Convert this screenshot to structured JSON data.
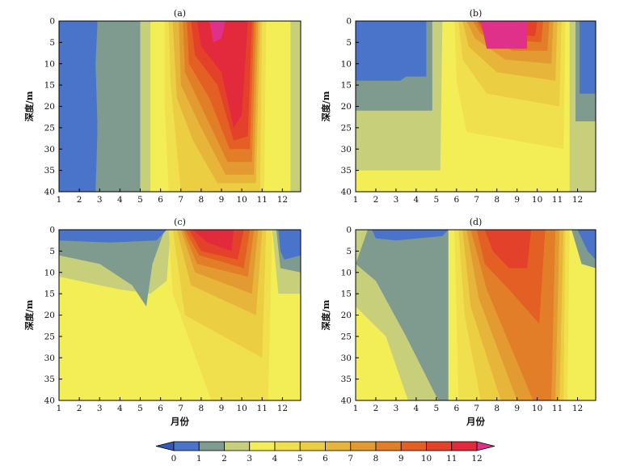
{
  "colors": {
    "c0_1": "#4a74c9",
    "c1_2": "#7f9a8f",
    "c2_3": "#c8cf7a",
    "c3_4": "#f3ee56",
    "c4_5": "#f0e04e",
    "c5_6": "#ecce43",
    "c6_7": "#e6b53a",
    "c7_8": "#e39a30",
    "c8_9": "#e37e28",
    "c9_10": "#e45f23",
    "c10_11": "#e4412a",
    "c11_12": "#e3293c",
    "over12": "#e0318a"
  },
  "chart_data": [
    {
      "type": "heatmap",
      "label": "(a)",
      "xlabel": "",
      "ylabel": "深度/m",
      "x_ticks": [
        "1",
        "2",
        "3",
        "4",
        "5",
        "6",
        "7",
        "8",
        "9",
        "10",
        "11",
        "12"
      ],
      "y_ticks": [
        "0",
        "5",
        "10",
        "15",
        "20",
        "25",
        "30",
        "35",
        "40"
      ],
      "xlim": [
        1,
        12.9
      ],
      "ylim": [
        40,
        0
      ],
      "bands": [
        {
          "x": [
            1.0,
            2.9
          ],
          "value_class": "0-1"
        },
        {
          "x": [
            2.9,
            5.0
          ],
          "value_class": "1-2"
        },
        {
          "x": [
            5.0,
            5.5
          ],
          "value_class": "2-3"
        },
        {
          "x": [
            5.5,
            6.5
          ],
          "value_class": "3-4"
        },
        {
          "x": [
            6.5,
            10.9
          ],
          "value_class": "4-12"
        },
        {
          "x": [
            10.9,
            12.4
          ],
          "value_class": "3-4"
        },
        {
          "x": [
            12.4,
            12.9
          ],
          "value_class": "2-3"
        }
      ]
    },
    {
      "type": "heatmap",
      "label": "(b)",
      "xlabel": "",
      "ylabel": "深度/m",
      "x_ticks": [
        "1",
        "2",
        "3",
        "4",
        "5",
        "6",
        "7",
        "8",
        "9",
        "10",
        "11",
        "12"
      ],
      "y_ticks": [
        "0",
        "5",
        "10",
        "15",
        "20",
        "25",
        "30",
        "35",
        "40"
      ],
      "xlim": [
        1,
        12.9
      ],
      "ylim": [
        40,
        0
      ],
      "bands": [
        {
          "x": [
            1.0,
            4.5
          ],
          "depth": [
            0,
            14
          ],
          "value_class": "0-1"
        },
        {
          "x": [
            1.0,
            4.8
          ],
          "depth": [
            14,
            21
          ],
          "value_class": "1-2"
        },
        {
          "x": [
            1.0,
            5.3
          ],
          "depth": [
            21,
            35
          ],
          "value_class": "2-3"
        },
        {
          "x": [
            5.3,
            11.5
          ],
          "depth": [
            0,
            40
          ],
          "value_class": "3-12"
        },
        {
          "x": [
            12.1,
            12.9
          ],
          "depth": [
            0,
            17
          ],
          "value_class": "0-1"
        }
      ]
    },
    {
      "type": "heatmap",
      "label": "(c)",
      "xlabel": "月份",
      "ylabel": "深度/m",
      "x_ticks": [
        "1",
        "2",
        "3",
        "4",
        "5",
        "6",
        "7",
        "8",
        "9",
        "10",
        "11",
        "12"
      ],
      "y_ticks": [
        "0",
        "5",
        "10",
        "15",
        "20",
        "25",
        "30",
        "35",
        "40"
      ],
      "xlim": [
        1,
        12.9
      ],
      "ylim": [
        40,
        0
      ],
      "bands": [
        {
          "x": [
            1.0,
            6.5
          ],
          "depth": [
            0,
            3
          ],
          "value_class": "0-1"
        },
        {
          "x": [
            6.5,
            11.2
          ],
          "depth": [
            0,
            40
          ],
          "value_class": "3-12"
        },
        {
          "x": [
            11.8,
            12.9
          ],
          "depth": [
            0,
            7
          ],
          "value_class": "0-1"
        }
      ]
    },
    {
      "type": "heatmap",
      "label": "(d)",
      "xlabel": "月份",
      "ylabel": "深度/m",
      "x_ticks": [
        "1",
        "2",
        "3",
        "4",
        "5",
        "6",
        "7",
        "8",
        "9",
        "10",
        "11",
        "12"
      ],
      "y_ticks": [
        "0",
        "5",
        "10",
        "15",
        "20",
        "25",
        "30",
        "35",
        "40"
      ],
      "xlim": [
        1,
        12.9
      ],
      "ylim": [
        40,
        0
      ],
      "bands": [
        {
          "x": [
            1.0,
            5.6
          ],
          "depth": [
            0,
            40
          ],
          "value_class": "0-3"
        },
        {
          "x": [
            5.9,
            11.5
          ],
          "depth": [
            0,
            40
          ],
          "value_class": "3-11"
        },
        {
          "x": [
            12.0,
            12.9
          ],
          "depth": [
            0,
            8
          ],
          "value_class": "0-1"
        }
      ]
    }
  ],
  "colorbar": {
    "ticks": [
      "0",
      "1",
      "2",
      "3",
      "4",
      "5",
      "6",
      "7",
      "8",
      "9",
      "10",
      "11",
      "12"
    ]
  }
}
